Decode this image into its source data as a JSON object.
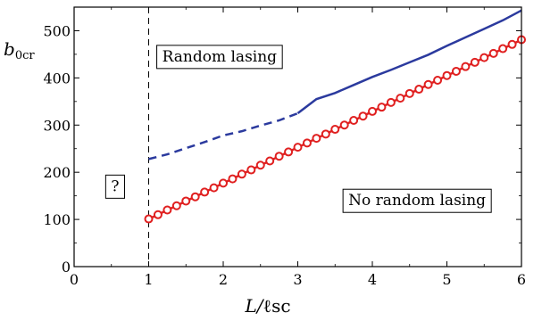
{
  "chart_data": {
    "type": "line",
    "xlabel": "L/ℓsc",
    "ylabel": "b0cr",
    "xlim": [
      0,
      6
    ],
    "ylim": [
      0,
      550
    ],
    "x_ticks": [
      0,
      1,
      2,
      3,
      4,
      5,
      6
    ],
    "y_ticks": [
      0,
      100,
      200,
      300,
      400,
      500
    ],
    "grid": false,
    "series": [
      {
        "color": "#2b3a9e",
        "style": "dashed-then-solid",
        "dash_until_x": 3,
        "x": [
          1.0,
          1.25,
          1.5,
          1.75,
          2.0,
          2.25,
          2.5,
          2.75,
          3.0,
          3.25,
          3.5,
          3.75,
          4.0,
          4.25,
          4.5,
          4.75,
          5.0,
          5.25,
          5.5,
          5.75,
          6.0
        ],
        "values": [
          228,
          238,
          251,
          264,
          278,
          287,
          299,
          310,
          325,
          355,
          368,
          385,
          402,
          417,
          433,
          449,
          468,
          486,
          504,
          522,
          543
        ]
      },
      {
        "color": "#e02020",
        "style": "solid-with-circles",
        "x": [
          1.0,
          1.125,
          1.25,
          1.375,
          1.5,
          1.625,
          1.75,
          1.875,
          2.0,
          2.125,
          2.25,
          2.375,
          2.5,
          2.625,
          2.75,
          2.875,
          3.0,
          3.125,
          3.25,
          3.375,
          3.5,
          3.625,
          3.75,
          3.875,
          4.0,
          4.125,
          4.25,
          4.375,
          4.5,
          4.625,
          4.75,
          4.875,
          5.0,
          5.125,
          5.25,
          5.375,
          5.5,
          5.625,
          5.75,
          5.875,
          6.0
        ],
        "values": [
          101,
          110,
          120,
          129,
          139,
          148,
          158,
          167,
          177,
          186,
          196,
          205,
          215,
          224,
          234,
          243,
          253,
          262,
          272,
          281,
          291,
          300,
          310,
          319,
          329,
          338,
          348,
          357,
          367,
          376,
          386,
          395,
          405,
          414,
          424,
          433,
          443,
          452,
          462,
          471,
          481
        ]
      }
    ],
    "vline": {
      "x": 1,
      "style": "dashed"
    },
    "annotations": [
      {
        "text": "Random lasing",
        "x": 1.95,
        "y": 435
      },
      {
        "text": "No random lasing",
        "x": 4.6,
        "y": 130
      },
      {
        "text": "?",
        "x": 0.55,
        "y": 160
      }
    ]
  }
}
